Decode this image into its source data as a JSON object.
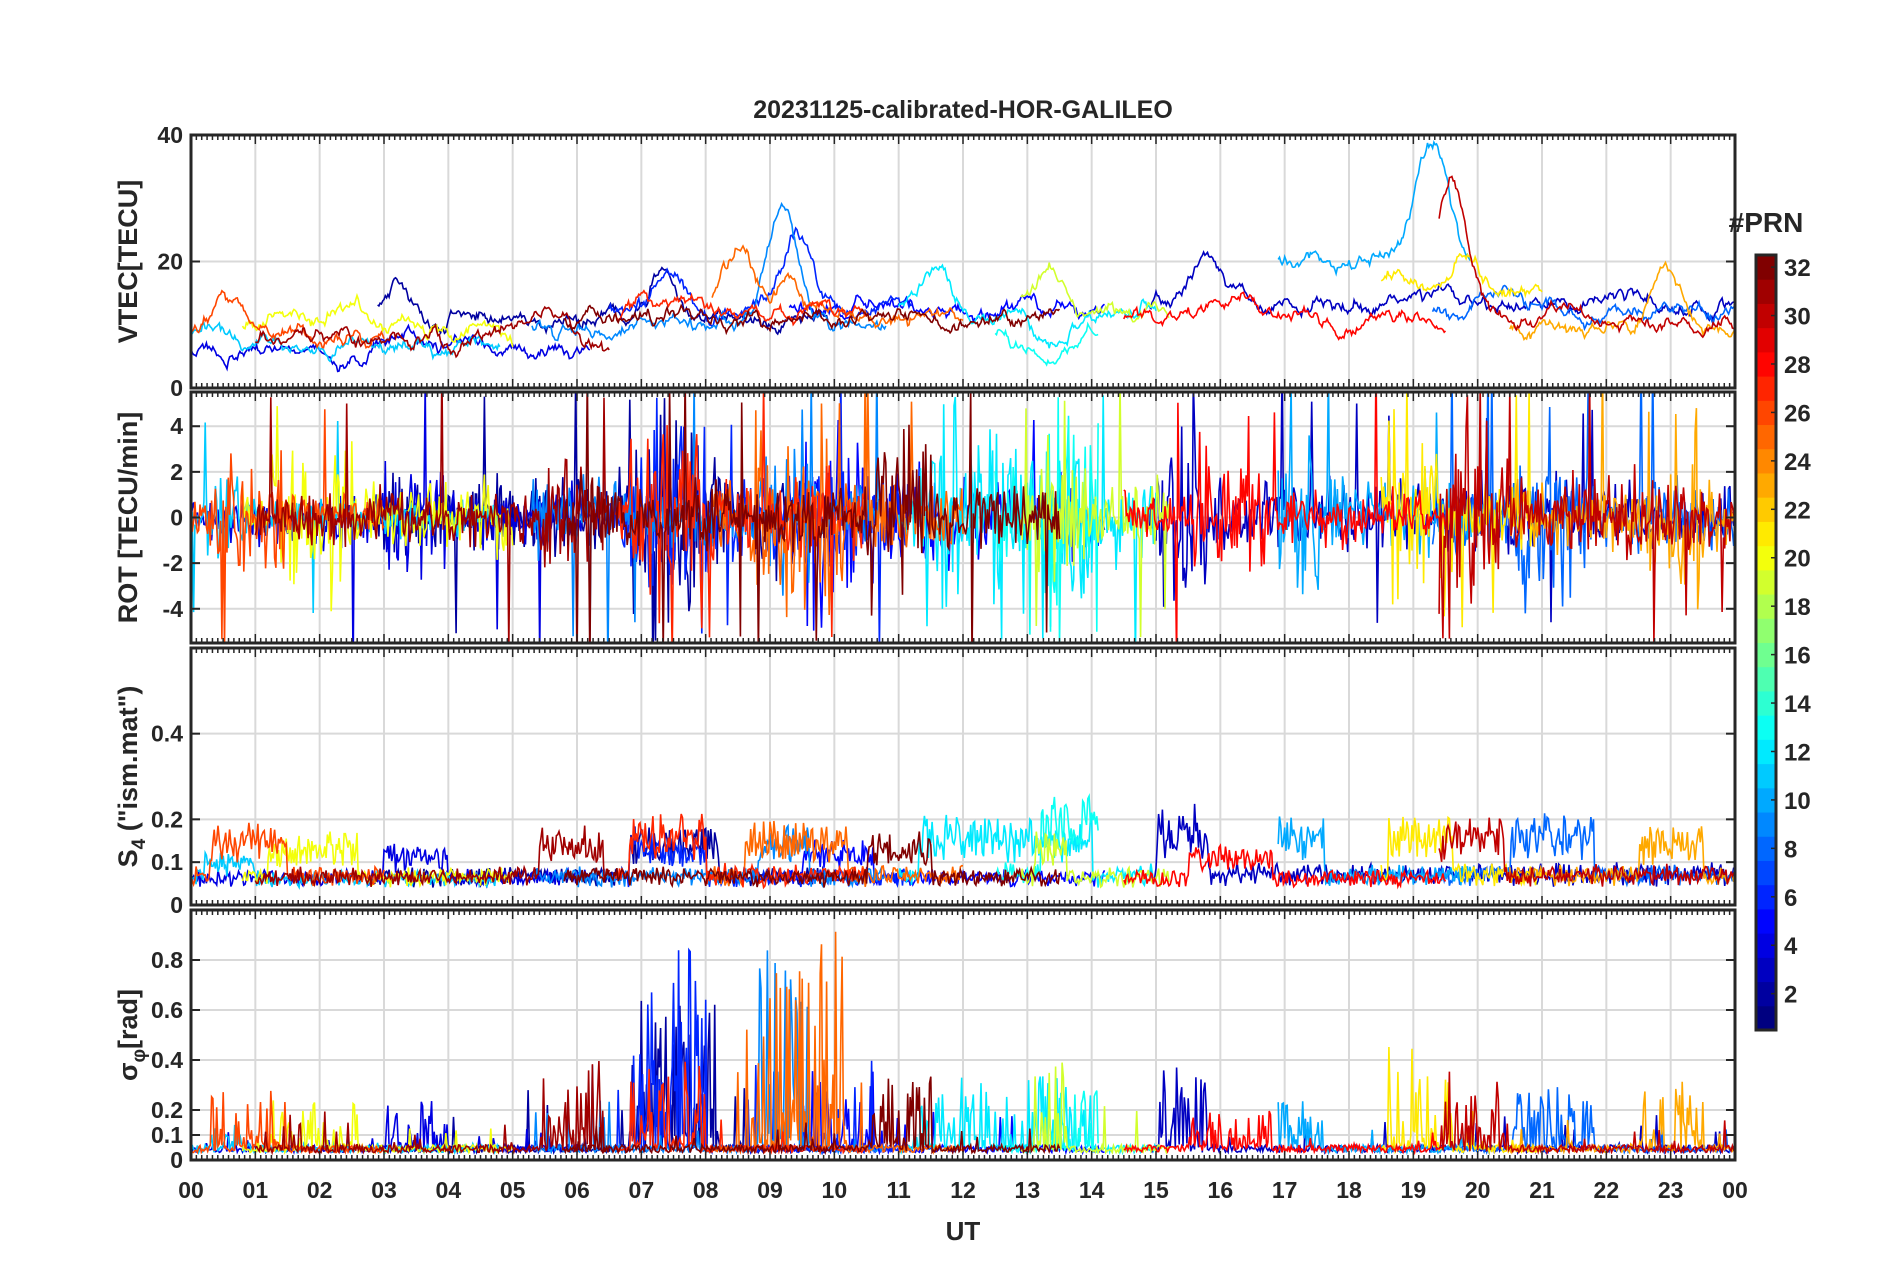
{
  "title": "20231125-calibrated-HOR-GALILEO",
  "x_axis": {
    "label": "UT",
    "ticks": [
      "00",
      "01",
      "02",
      "03",
      "04",
      "05",
      "06",
      "07",
      "08",
      "09",
      "10",
      "11",
      "12",
      "13",
      "14",
      "15",
      "16",
      "17",
      "18",
      "19",
      "20",
      "21",
      "22",
      "23",
      "00"
    ]
  },
  "colorbar": {
    "label": "#PRN",
    "min": 1,
    "max": 32,
    "ticks": [
      "2",
      "4",
      "6",
      "8",
      "10",
      "12",
      "14",
      "16",
      "18",
      "20",
      "22",
      "24",
      "26",
      "28",
      "30",
      "32"
    ],
    "colormap": "jet"
  },
  "panels": [
    {
      "id": "vtec",
      "ylabel": "VTEC[TECU]",
      "ylim": [
        0,
        40
      ],
      "yticks": [
        "0",
        "20",
        "40"
      ],
      "ytick_values": [
        0,
        20,
        40
      ]
    },
    {
      "id": "rot",
      "ylabel": "ROT [TECU/min]",
      "ylim": [
        -5.5,
        5.5
      ],
      "yticks": [
        "-4",
        "-2",
        "0",
        "2",
        "4"
      ],
      "ytick_values": [
        -4,
        -2,
        0,
        2,
        4
      ]
    },
    {
      "id": "s4",
      "ylabel_main": "S",
      "ylabel_sub": "4",
      "ylabel_rest": " (\"ism.mat\")",
      "ylim": [
        0,
        0.6
      ],
      "yticks": [
        "0",
        "0.1",
        "0.2",
        "0.4"
      ],
      "ytick_values": [
        0,
        0.1,
        0.2,
        0.4
      ]
    },
    {
      "id": "sigma",
      "ylabel_main": "σ",
      "ylabel_sub": "φ",
      "ylabel_rest": "[rad]",
      "ylim": [
        0,
        1.0
      ],
      "yticks": [
        "0",
        "0.1",
        "0.2",
        "0.4",
        "0.6",
        "0.8"
      ],
      "ytick_values": [
        0,
        0.1,
        0.2,
        0.4,
        0.6,
        0.8
      ]
    }
  ],
  "chart_data": {
    "type": "line",
    "title": "20231125-calibrated-HOR-GALILEO",
    "xlabel": "UT",
    "xlim": [
      0,
      24
    ],
    "color_by": "PRN",
    "series": [
      {
        "name": "PRN 2",
        "prn": 2,
        "start": 2.9,
        "end": 9.9,
        "vtec": {
          "base": 11,
          "peak": [
            [
              3.2,
              17
            ],
            [
              7.3,
              18
            ]
          ]
        },
        "act": {
          "rot": 5,
          "s4": 0.09,
          "sig": 0.6,
          "burst": [
            6.8,
            8.2
          ]
        }
      },
      {
        "name": "PRN 3",
        "prn": 3,
        "start": 14.9,
        "end": 24,
        "vtec": {
          "base": 13,
          "peak": [
            [
              15.8,
              22
            ],
            [
              19.6,
              15
            ]
          ]
        },
        "act": {
          "rot": 4,
          "s4": 0.13,
          "sig": 0.35,
          "burst": [
            15.0,
            15.8
          ]
        }
      },
      {
        "name": "PRN 4",
        "prn": 4,
        "start": 0,
        "end": 6.2,
        "vtec": {
          "base": 6,
          "peak": [
            [
              3.2,
              9
            ]
          ]
        },
        "act": {
          "rot": 3,
          "s4": 0.06,
          "sig": 0.2,
          "burst": [
            3.0,
            4.0
          ]
        }
      },
      {
        "name": "PRN 5",
        "prn": 5,
        "start": 9.3,
        "end": 14.2,
        "vtec": {
          "base": 12,
          "peak": [
            [
              10.5,
              15
            ]
          ]
        },
        "act": {
          "rot": 5,
          "s4": 0.07,
          "sig": 0.35,
          "burst": [
            9.5,
            10.6
          ]
        }
      },
      {
        "name": "PRN 6",
        "prn": 6,
        "start": 6.5,
        "end": 11.2,
        "vtec": {
          "base": 12,
          "peak": [
            [
              7.5,
              18
            ],
            [
              9.4,
              25
            ]
          ]
        },
        "act": {
          "rot": 5,
          "s4": 0.08,
          "sig": 0.9,
          "burst": [
            6.8,
            8.0
          ]
        }
      },
      {
        "name": "PRN 8",
        "prn": 8,
        "start": 19.3,
        "end": 24,
        "vtec": {
          "base": 12,
          "peak": [
            [
              20.3,
              16
            ]
          ]
        },
        "act": {
          "rot": 4,
          "s4": 0.12,
          "sig": 0.25,
          "burst": [
            20.5,
            21.8
          ]
        }
      },
      {
        "name": "PRN 9",
        "prn": 9,
        "start": 5.3,
        "end": 10.8,
        "vtec": {
          "base": 10,
          "peak": [
            [
              9.2,
              27
            ]
          ]
        },
        "act": {
          "rot": 4,
          "s4": 0.09,
          "sig": 0.85,
          "burst": [
            8.8,
            9.6
          ]
        }
      },
      {
        "name": "PRN 10",
        "prn": 10,
        "start": 16.9,
        "end": 19.9,
        "vtec": {
          "base": 20,
          "peak": [
            [
              19.3,
              40
            ]
          ]
        },
        "act": {
          "rot": 5,
          "s4": 0.12,
          "sig": 0.2,
          "burst": [
            16.9,
            17.6
          ]
        }
      },
      {
        "name": "PRN 11",
        "prn": 11,
        "start": 0,
        "end": 4.8,
        "vtec": {
          "base": 7,
          "peak": [
            [
              0.3,
              10
            ]
          ]
        },
        "act": {
          "rot": 2,
          "s4": 0.05,
          "sig": 0.1,
          "burst": [
            0.2,
            1.0
          ]
        }
      },
      {
        "name": "PRN 12",
        "prn": 12,
        "start": 11.0,
        "end": 15.0,
        "vtec": {
          "base": 12,
          "peak": [
            [
              11.5,
              20
            ],
            [
              13.4,
              6
            ]
          ]
        },
        "act": {
          "rot": 5,
          "s4": 0.11,
          "sig": 0.3,
          "burst": [
            11.3,
            14.0
          ]
        }
      },
      {
        "name": "PRN 13",
        "prn": 13,
        "start": 12.5,
        "end": 14.1,
        "vtec": {
          "base": 9,
          "peak": [
            [
              13.3,
              4
            ]
          ]
        },
        "act": {
          "rot": 5,
          "s4": 0.15,
          "sig": 0.25,
          "burst": [
            13.2,
            14.1
          ]
        }
      },
      {
        "name": "PRN 19",
        "prn": 19,
        "start": 12.9,
        "end": 15.2,
        "vtec": {
          "base": 12,
          "peak": [
            [
              13.3,
              19
            ]
          ]
        },
        "act": {
          "rot": 5,
          "s4": 0.09,
          "sig": 0.5,
          "burst": [
            13.1,
            13.6
          ]
        }
      },
      {
        "name": "PRN 20",
        "prn": 20,
        "start": 0.8,
        "end": 5.0,
        "vtec": {
          "base": 9,
          "peak": [
            [
              1.3,
              13
            ],
            [
              2.4,
              14
            ]
          ]
        },
        "act": {
          "rot": 4,
          "s4": 0.08,
          "sig": 0.2,
          "burst": [
            1.2,
            2.6
          ]
        }
      },
      {
        "name": "PRN 21",
        "prn": 21,
        "start": 18.5,
        "end": 21.0,
        "vtec": {
          "base": 15,
          "peak": [
            [
              18.8,
              19
            ],
            [
              19.8,
              21
            ]
          ]
        },
        "act": {
          "rot": 4,
          "s4": 0.12,
          "sig": 0.45,
          "burst": [
            18.6,
            19.6
          ]
        }
      },
      {
        "name": "PRN 23",
        "prn": 23,
        "start": 20.5,
        "end": 24,
        "vtec": {
          "base": 9,
          "peak": [
            [
              22.9,
              19
            ]
          ]
        },
        "act": {
          "rot": 4,
          "s4": 0.1,
          "sig": 0.3,
          "burst": [
            22.5,
            23.5
          ]
        }
      },
      {
        "name": "PRN 25",
        "prn": 25,
        "start": 8.1,
        "end": 12.0,
        "vtec": {
          "base": 11,
          "peak": [
            [
              8.5,
              21
            ],
            [
              9.3,
              17
            ]
          ]
        },
        "act": {
          "rot": 5,
          "s4": 0.1,
          "sig": 0.9,
          "burst": [
            8.6,
            10.2
          ]
        }
      },
      {
        "name": "PRN 26",
        "prn": 26,
        "start": 0,
        "end": 3.0,
        "vtec": {
          "base": 9,
          "peak": [
            [
              0.6,
              15
            ]
          ]
        },
        "act": {
          "rot": 3,
          "s4": 0.1,
          "sig": 0.25,
          "burst": [
            0.3,
            1.5
          ]
        }
      },
      {
        "name": "PRN 27",
        "prn": 27,
        "start": 6.6,
        "end": 10.5,
        "vtec": {
          "base": 12,
          "peak": [
            [
              7.3,
              14
            ]
          ]
        },
        "act": {
          "rot": 5,
          "s4": 0.12,
          "sig": 0.35,
          "burst": [
            6.8,
            8.0
          ]
        }
      },
      {
        "name": "PRN 28",
        "prn": 28,
        "start": 14.5,
        "end": 19.5,
        "vtec": {
          "base": 11,
          "peak": [
            [
              16.3,
              15
            ]
          ]
        },
        "act": {
          "rot": 3,
          "s4": 0.06,
          "sig": 0.15,
          "burst": [
            15.5,
            16.8
          ]
        }
      },
      {
        "name": "PRN 30",
        "prn": 30,
        "start": 19.4,
        "end": 24,
        "vtec": {
          "base": 10,
          "peak": [
            [
              19.6,
              33
            ],
            [
              21.3,
              13
            ]
          ]
        },
        "act": {
          "rot": 5,
          "s4": 0.11,
          "sig": 0.3,
          "burst": [
            19.4,
            20.4
          ]
        }
      },
      {
        "name": "PRN 31",
        "prn": 31,
        "start": 1.0,
        "end": 6.5,
        "vtec": {
          "base": 8,
          "peak": [
            [
              5.5,
              11
            ]
          ]
        },
        "act": {
          "rot": 3,
          "s4": 0.09,
          "sig": 0.4,
          "burst": [
            5.4,
            6.4
          ]
        }
      },
      {
        "name": "PRN 32",
        "prn": 32,
        "start": 5.8,
        "end": 13.5,
        "vtec": {
          "base": 11,
          "peak": [
            [
              11.8,
              11
            ]
          ]
        },
        "act": {
          "rot": 4,
          "s4": 0.08,
          "sig": 0.3,
          "burst": [
            10.5,
            11.5
          ]
        }
      }
    ]
  }
}
